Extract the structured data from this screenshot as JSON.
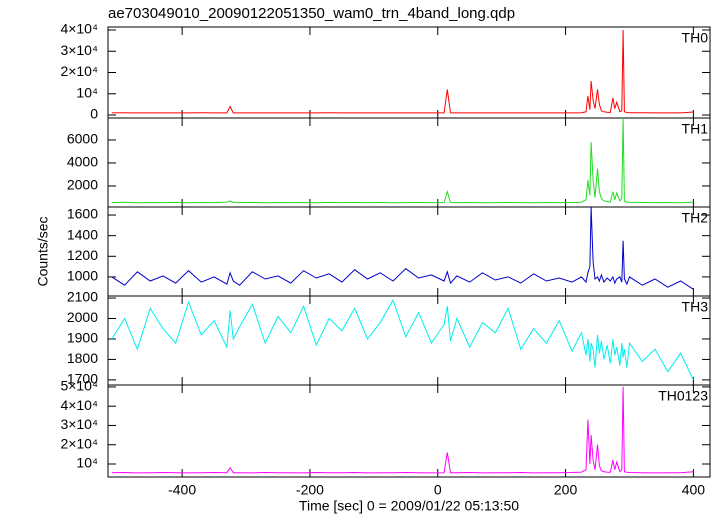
{
  "chart_data": [
    {
      "type": "line",
      "title": "ae703049010_20090122051350_wam0_trn_4band_long.qdp",
      "label": "TH0",
      "x": [
        -510,
        -490,
        -470,
        -450,
        -430,
        -410,
        -390,
        -370,
        -350,
        -330,
        -325,
        -320,
        -310,
        -290,
        -270,
        -250,
        -230,
        -210,
        -190,
        -170,
        -150,
        -130,
        -110,
        -90,
        -70,
        -50,
        -30,
        -10,
        10,
        15,
        20,
        30,
        50,
        70,
        90,
        110,
        130,
        150,
        170,
        190,
        210,
        225,
        232,
        235,
        238,
        240,
        243,
        246,
        250,
        253,
        256,
        260,
        265,
        270,
        274,
        277,
        280,
        285,
        288,
        290,
        292,
        296,
        300,
        320,
        340,
        360,
        380,
        400
      ],
      "series": [
        {
          "name": "TH0",
          "color": "#ff0000",
          "values": [
            1000,
            1050,
            980,
            1020,
            1000,
            1010,
            990,
            1030,
            1000,
            1020,
            4000,
            1000,
            1010,
            990,
            1020,
            1000,
            980,
            1010,
            1000,
            1030,
            990,
            1010,
            1000,
            1020,
            990,
            1000,
            1010,
            990,
            1000,
            12000,
            1000,
            1010,
            990,
            1000,
            1020,
            990,
            1000,
            1010,
            990,
            1000,
            1010,
            1100,
            1500,
            9000,
            2500,
            16000,
            7000,
            3000,
            12000,
            5000,
            2000,
            1500,
            1300,
            1200,
            8000,
            3000,
            6000,
            1500,
            2000,
            40000,
            1500,
            1200,
            1100,
            1050,
            1000,
            1020,
            1000,
            1400
          ]
        }
      ],
      "xlim": [
        -516,
        426
      ],
      "xticks": [
        -400,
        -200,
        0,
        200,
        400
      ],
      "ylim": [
        -1400,
        41400
      ],
      "yticks": [
        0,
        {
          "value": 10000,
          "label": "10⁴"
        },
        {
          "value": 20000,
          "label": "2×10⁴"
        },
        {
          "value": 30000,
          "label": "3×10⁴"
        },
        {
          "value": 40000,
          "label": "4×10⁴"
        }
      ]
    },
    {
      "type": "line",
      "label": "TH1",
      "x": [
        -510,
        -490,
        -470,
        -450,
        -430,
        -410,
        -390,
        -370,
        -350,
        -330,
        -325,
        -320,
        -310,
        -290,
        -270,
        -250,
        -230,
        -210,
        -190,
        -170,
        -150,
        -130,
        -110,
        -90,
        -70,
        -50,
        -30,
        -10,
        10,
        15,
        20,
        30,
        50,
        70,
        90,
        110,
        130,
        150,
        170,
        190,
        210,
        225,
        232,
        235,
        238,
        240,
        243,
        246,
        250,
        253,
        256,
        260,
        265,
        270,
        274,
        277,
        280,
        285,
        288,
        290,
        292,
        296,
        300,
        320,
        340,
        360,
        380,
        400
      ],
      "series": [
        {
          "name": "TH1",
          "color": "#22dd22",
          "values": [
            550,
            580,
            540,
            560,
            550,
            570,
            540,
            560,
            550,
            600,
            700,
            560,
            550,
            570,
            540,
            560,
            550,
            560,
            540,
            570,
            550,
            560,
            550,
            560,
            540,
            550,
            560,
            550,
            550,
            1500,
            560,
            550,
            560,
            540,
            550,
            560,
            550,
            540,
            560,
            550,
            560,
            600,
            800,
            2500,
            1200,
            5800,
            2500,
            1000,
            3500,
            1500,
            900,
            700,
            650,
            600,
            1500,
            800,
            1400,
            700,
            900,
            7910,
            700,
            600,
            580,
            560,
            550,
            560,
            540,
            600
          ]
        }
      ],
      "xlim": [
        -516,
        426
      ],
      "xticks": [
        -400,
        -200,
        0,
        200,
        400
      ],
      "ylim": [
        170,
        7910
      ],
      "yticks": [
        2000,
        4000,
        6000
      ]
    },
    {
      "type": "line",
      "label": "TH2",
      "y_label": "Counts/sec",
      "x": [
        -510,
        -490,
        -470,
        -450,
        -430,
        -410,
        -390,
        -370,
        -350,
        -330,
        -325,
        -320,
        -310,
        -290,
        -270,
        -250,
        -230,
        -210,
        -190,
        -170,
        -150,
        -130,
        -110,
        -90,
        -70,
        -50,
        -30,
        -10,
        10,
        15,
        20,
        30,
        50,
        70,
        90,
        110,
        130,
        150,
        170,
        190,
        210,
        225,
        232,
        235,
        238,
        240,
        243,
        246,
        250,
        253,
        256,
        260,
        265,
        270,
        274,
        277,
        280,
        285,
        288,
        290,
        292,
        296,
        300,
        320,
        340,
        360,
        380,
        400
      ],
      "series": [
        {
          "name": "TH2",
          "color": "#0000cc",
          "values": [
            1000,
            920,
            1050,
            960,
            1010,
            940,
            1060,
            950,
            1000,
            930,
            1040,
            960,
            920,
            1050,
            980,
            1010,
            940,
            1060,
            990,
            1030,
            950,
            1070,
            980,
            1040,
            960,
            1080,
            990,
            1020,
            960,
            1050,
            940,
            1010,
            950,
            1040,
            970,
            1000,
            940,
            1030,
            960,
            990,
            950,
            1000,
            950,
            1040,
            1100,
            1678,
            1150,
            980,
            1000,
            960,
            1020,
            950,
            990,
            960,
            1000,
            940,
            980,
            1000,
            950,
            1350,
            980,
            930,
            1000,
            920,
            980,
            900,
            960,
            880
          ]
        }
      ],
      "xlim": [
        -516,
        426
      ],
      "xticks": [
        -400,
        -200,
        0,
        200,
        400
      ],
      "ylim": [
        815,
        1678
      ],
      "yticks": [
        1000,
        1200,
        1400,
        1600
      ]
    },
    {
      "type": "line",
      "label": "TH3",
      "x": [
        -510,
        -490,
        -470,
        -450,
        -430,
        -410,
        -390,
        -370,
        -350,
        -330,
        -325,
        -320,
        -310,
        -290,
        -270,
        -250,
        -230,
        -210,
        -190,
        -170,
        -150,
        -130,
        -110,
        -90,
        -70,
        -50,
        -30,
        -10,
        10,
        15,
        20,
        30,
        50,
        70,
        90,
        110,
        130,
        150,
        170,
        190,
        210,
        225,
        232,
        235,
        238,
        240,
        243,
        246,
        250,
        253,
        256,
        260,
        265,
        270,
        274,
        277,
        280,
        285,
        288,
        290,
        292,
        296,
        300,
        320,
        340,
        360,
        380,
        400
      ],
      "series": [
        {
          "name": "TH3",
          "color": "#00eeee",
          "values": [
            1900,
            2000,
            1850,
            2050,
            1950,
            1880,
            2080,
            1920,
            1990,
            1860,
            2040,
            1900,
            1960,
            2070,
            1880,
            2010,
            1930,
            2060,
            1870,
            2000,
            1940,
            2050,
            1900,
            1980,
            2090,
            1910,
            2030,
            1880,
            1970,
            2060,
            1890,
            2000,
            1860,
            1980,
            1930,
            2050,
            1850,
            1950,
            1880,
            1990,
            1840,
            1930,
            1820,
            1900,
            1790,
            1880,
            1850,
            1760,
            1920,
            1830,
            1890,
            1800,
            1870,
            1780,
            1900,
            1820,
            1860,
            1770,
            1880,
            1810,
            1850,
            1760,
            1880,
            1790,
            1850,
            1740,
            1830,
            1700
          ]
        }
      ],
      "xlim": [
        -516,
        426
      ],
      "xticks": [
        -400,
        -200,
        0,
        200,
        400
      ],
      "ylim": [
        1675,
        2110
      ],
      "yticks": [
        1700,
        1800,
        1900,
        2000,
        2100
      ]
    },
    {
      "type": "line",
      "label": "TH0123",
      "x_label": "Time [sec] 0 = 2009/01/22 05:13:50",
      "x": [
        -510,
        -490,
        -470,
        -450,
        -430,
        -410,
        -390,
        -370,
        -350,
        -330,
        -325,
        -320,
        -310,
        -290,
        -270,
        -250,
        -230,
        -210,
        -190,
        -170,
        -150,
        -130,
        -110,
        -90,
        -70,
        -50,
        -30,
        -10,
        10,
        15,
        20,
        30,
        50,
        70,
        90,
        110,
        130,
        150,
        170,
        190,
        210,
        225,
        232,
        235,
        238,
        240,
        243,
        246,
        250,
        253,
        256,
        260,
        265,
        270,
        274,
        277,
        280,
        285,
        288,
        290,
        292,
        296,
        300,
        320,
        340,
        360,
        380,
        400
      ],
      "series": [
        {
          "name": "TH0123",
          "color": "#ff00ff",
          "values": [
            5500,
            5600,
            5400,
            5500,
            5600,
            5500,
            5400,
            5500,
            5600,
            5500,
            8000,
            5500,
            5500,
            5400,
            5600,
            5500,
            5500,
            5400,
            5600,
            5500,
            5500,
            5600,
            5400,
            5500,
            5500,
            5600,
            5500,
            5400,
            5500,
            16000,
            5500,
            5500,
            5600,
            5400,
            5500,
            5500,
            5600,
            5400,
            5500,
            5500,
            5600,
            5800,
            7000,
            33000,
            10000,
            25000,
            12000,
            7000,
            20000,
            9000,
            6500,
            6000,
            5800,
            5700,
            12000,
            7000,
            11000,
            6000,
            7000,
            50000,
            6000,
            5700,
            5600,
            5500,
            5400,
            5500,
            5500,
            6000
          ]
        }
      ],
      "xlim": [
        -516,
        426
      ],
      "xticks": [
        -400,
        -200,
        0,
        200,
        400
      ],
      "ylim": [
        3250,
        51000
      ],
      "yticks": [
        {
          "value": 10000,
          "label": "10⁴"
        },
        {
          "value": 20000,
          "label": "2×10⁴"
        },
        {
          "value": 30000,
          "label": "3×10⁴"
        },
        {
          "value": 40000,
          "label": "4×10⁴"
        },
        {
          "value": 50000,
          "label": "5×10⁴"
        }
      ]
    }
  ]
}
